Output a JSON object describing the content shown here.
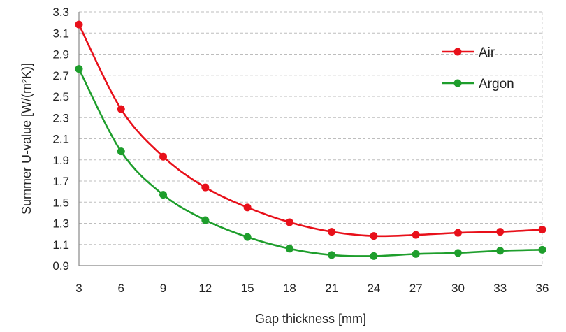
{
  "chart_data": {
    "type": "line",
    "title": "",
    "xlabel": "Gap thickness [mm]",
    "ylabel": "Summer U-value [W/(m²K)]",
    "x": [
      3,
      6,
      9,
      12,
      15,
      18,
      21,
      24,
      27,
      30,
      33,
      36
    ],
    "xlim": [
      3,
      36
    ],
    "ylim": [
      0.9,
      3.3
    ],
    "yticks": [
      0.9,
      1.1,
      1.3,
      1.5,
      1.7,
      1.9,
      2.1,
      2.3,
      2.5,
      2.7,
      2.9,
      3.1,
      3.3
    ],
    "ytick_labels": [
      "0.9",
      "1.1",
      "1.3",
      "1.5",
      "1.7",
      "1.9",
      "2.1",
      "2.3",
      "2.5",
      "2.7",
      "2.9",
      "3.1",
      "3.3"
    ],
    "xtick_labels": [
      "3",
      "6",
      "9",
      "12",
      "15",
      "18",
      "21",
      "24",
      "27",
      "30",
      "33",
      "36"
    ],
    "grid": "horizontal-dashed",
    "legend_position": "top-right",
    "series": [
      {
        "name": "Air",
        "color": "#e8101a",
        "values": [
          3.18,
          2.38,
          1.93,
          1.64,
          1.45,
          1.31,
          1.22,
          1.18,
          1.19,
          1.21,
          1.22,
          1.24
        ]
      },
      {
        "name": "Argon",
        "color": "#1e9e2c",
        "values": [
          2.76,
          1.98,
          1.57,
          1.33,
          1.17,
          1.06,
          1.0,
          0.99,
          1.01,
          1.02,
          1.04,
          1.05
        ]
      }
    ]
  }
}
